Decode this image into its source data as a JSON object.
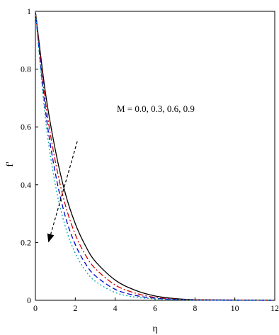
{
  "chart_data": {
    "type": "line",
    "xlabel": "η",
    "ylabel": "f'",
    "xlim": [
      0,
      12
    ],
    "ylim": [
      0,
      1
    ],
    "x_ticks": [
      "0",
      "2",
      "4",
      "6",
      "8",
      "10",
      "12"
    ],
    "y_ticks": [
      "0",
      "0.2",
      "0.4",
      "0.6",
      "0.8",
      "1"
    ],
    "grid": false,
    "annotation": "M = 0.0, 0.3, 0.6, 0.9",
    "x": [
      0,
      0.5,
      1,
      1.5,
      2,
      2.5,
      3,
      4,
      5,
      6,
      7,
      8,
      10,
      12
    ],
    "series": [
      {
        "color": "#000000",
        "dash": "solid",
        "values": [
          1,
          0.72,
          0.52,
          0.37,
          0.265,
          0.19,
          0.135,
          0.07,
          0.035,
          0.015,
          0.006,
          0.002,
          0.001,
          0.0
        ]
      },
      {
        "color": "#cc0000",
        "dash": "dashdot",
        "values": [
          1,
          0.69,
          0.48,
          0.33,
          0.228,
          0.158,
          0.11,
          0.053,
          0.025,
          0.01,
          0.004,
          0.002,
          0.001,
          0.0
        ]
      },
      {
        "color": "#0000cc",
        "dash": "dashed",
        "values": [
          1,
          0.66,
          0.44,
          0.29,
          0.193,
          0.128,
          0.085,
          0.038,
          0.017,
          0.007,
          0.003,
          0.001,
          0.0,
          0.0
        ]
      },
      {
        "color": "#00aaaa",
        "dash": "dotted",
        "values": [
          1,
          0.63,
          0.4,
          0.255,
          0.163,
          0.104,
          0.066,
          0.027,
          0.011,
          0.005,
          0.002,
          0.001,
          0.0,
          0.0
        ]
      }
    ],
    "arrow": {
      "from": [
        2.1,
        0.55
      ],
      "to": [
        0.65,
        0.2
      ],
      "color": "#000000"
    }
  }
}
